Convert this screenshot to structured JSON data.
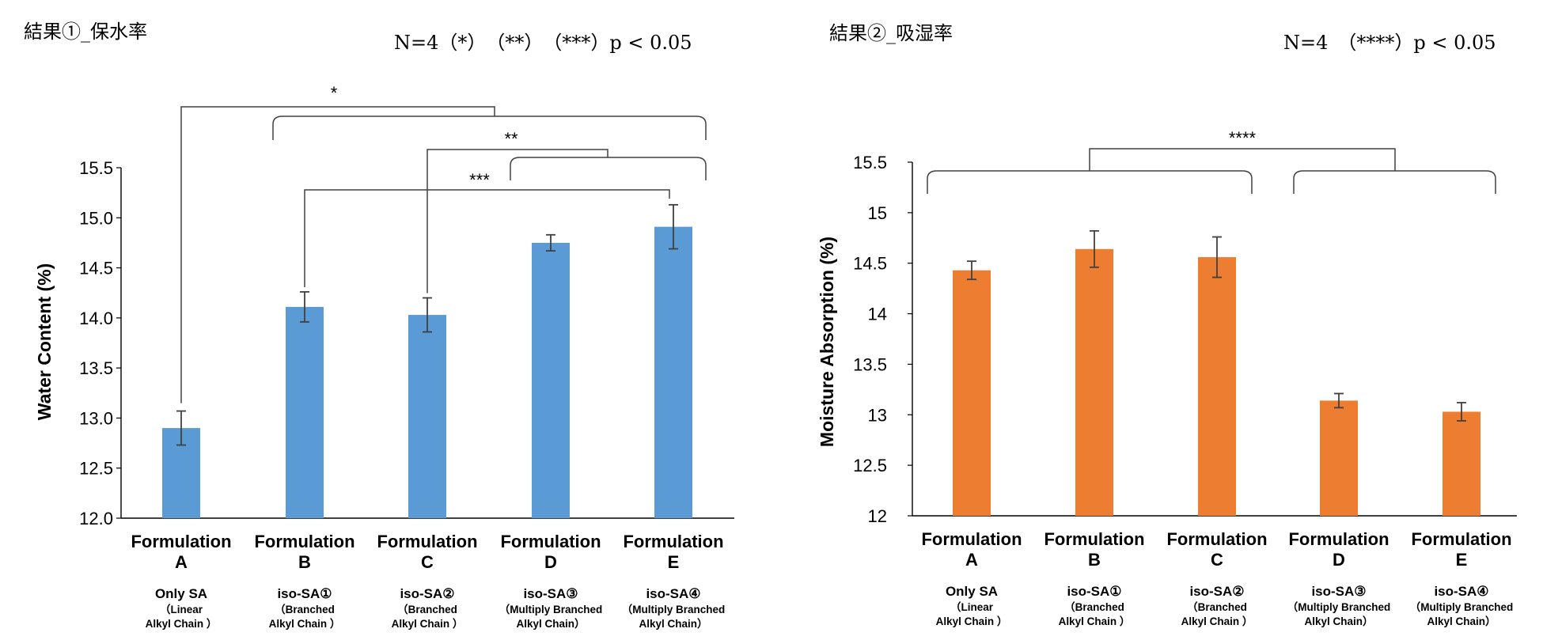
{
  "left_panel": {
    "heading": "結果①_保水率",
    "note": "N=4（*）　（**）　（***）p < 0.05"
  },
  "right_panel": {
    "heading": "結果②_吸湿率",
    "note": "N=4　（****）p < 0.05"
  },
  "colors": {
    "left_bar": "#5B9BD5",
    "right_bar": "#ED7D31",
    "error_bar": "#404040",
    "bracket": "#404040"
  },
  "chart_data": [
    {
      "type": "bar",
      "ylabel": "Water Content (%)",
      "ylim": [
        12.0,
        15.5
      ],
      "yticks": [
        "12.0",
        "12.5",
        "13.0",
        "13.5",
        "14.0",
        "14.5",
        "15.0",
        "15.5"
      ],
      "grid": false,
      "categories": [
        {
          "name": [
            "Formulation",
            "A"
          ],
          "desc": [
            "Only SA",
            "（Linear",
            "Alkyl Chain ）"
          ]
        },
        {
          "name": [
            "Formulation",
            "B"
          ],
          "desc": [
            "iso-SA①",
            "（Branched",
            "Alkyl Chain ）"
          ]
        },
        {
          "name": [
            "Formulation",
            "C"
          ],
          "desc": [
            "iso-SA②",
            "（Branched",
            "Alkyl Chain ）"
          ]
        },
        {
          "name": [
            "Formulation",
            "D"
          ],
          "desc": [
            "iso-SA③",
            "（Multiply Branched",
            "Alkyl Chain）"
          ]
        },
        {
          "name": [
            "Formulation",
            "E"
          ],
          "desc": [
            "iso-SA④",
            "（Multiply Branched",
            "Alkyl Chain）"
          ]
        }
      ],
      "values": [
        12.9,
        14.11,
        14.03,
        14.75,
        14.91
      ],
      "errors": [
        0.17,
        0.15,
        0.17,
        0.08,
        0.22
      ],
      "significance": [
        "*",
        "**",
        "***"
      ]
    },
    {
      "type": "bar",
      "ylabel": "Moisture Absorption (%)",
      "ylim": [
        12,
        15.5
      ],
      "yticks": [
        "12",
        "12.5",
        "13",
        "13.5",
        "14",
        "14.5",
        "15",
        "15.5"
      ],
      "grid": false,
      "categories": [
        {
          "name": [
            "Formulation",
            "A"
          ],
          "desc": [
            "Only SA",
            "（Linear",
            "Alkyl Chain ）"
          ]
        },
        {
          "name": [
            "Formulation",
            "B"
          ],
          "desc": [
            "iso-SA①",
            "（Branched",
            "Alkyl Chain ）"
          ]
        },
        {
          "name": [
            "Formulation",
            "C"
          ],
          "desc": [
            "iso-SA②",
            "（Branched",
            "Alkyl Chain ）"
          ]
        },
        {
          "name": [
            "Formulation",
            "D"
          ],
          "desc": [
            "iso-SA③",
            "（Multiply Branched",
            "Alkyl Chain）"
          ]
        },
        {
          "name": [
            "Formulation",
            "E"
          ],
          "desc": [
            "iso-SA④",
            "（Multiply Branched",
            "Alkyl Chain）"
          ]
        }
      ],
      "values": [
        14.43,
        14.64,
        14.56,
        13.14,
        13.03
      ],
      "errors": [
        0.09,
        0.18,
        0.2,
        0.07,
        0.09
      ],
      "significance": [
        "****"
      ]
    }
  ]
}
